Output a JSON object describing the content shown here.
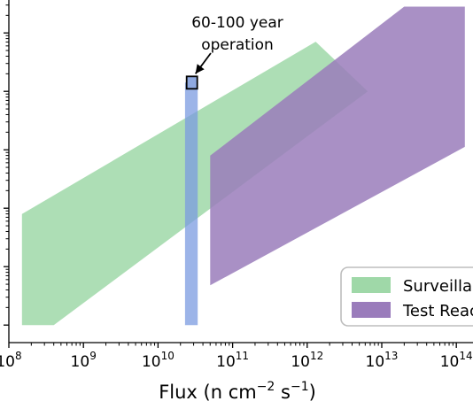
{
  "chart_data": {
    "type": "area",
    "xlabel": {
      "base": "Flux (n cm",
      "exp1": "−2",
      "mid": " s",
      "exp2": "−1",
      "end": ")"
    },
    "xscale": "log",
    "xlim": [
      100000000.0,
      120000000000000.0
    ],
    "ylim_log_decades": [
      0,
      5.8
    ],
    "yscale": "log",
    "x_ticks": [
      {
        "base": "10",
        "exp": "8",
        "value": 100000000.0
      },
      {
        "base": "10",
        "exp": "9",
        "value": 1000000000.0
      },
      {
        "base": "10",
        "exp": "10",
        "value": 10000000000.0
      },
      {
        "base": "10",
        "exp": "11",
        "value": 100000000000.0
      },
      {
        "base": "10",
        "exp": "12",
        "value": 1000000000000.0
      },
      {
        "base": "10",
        "exp": "13",
        "value": 10000000000000.0
      },
      {
        "base": "10",
        "exp": "14",
        "value": 100000000000000.0
      }
    ],
    "y_tick_decades": [
      0.3,
      1.3,
      2.3,
      3.3,
      4.3,
      5.3
    ],
    "series": [
      {
        "name": "Surveillance",
        "color": "#9fd8a8",
        "points": [
          [
            150000000.0,
            0.3
          ],
          [
            400000000.0,
            0.3
          ],
          [
            6500000000000.0,
            4.3
          ],
          [
            1300000000000.0,
            5.15
          ],
          [
            150000000.0,
            2.2
          ]
        ]
      },
      {
        "name": "Test Reactor",
        "color": "#9a7cbb",
        "points": [
          [
            50000000000.0,
            3.2
          ],
          [
            20000000000000.0,
            5.75
          ],
          [
            130000000000000.0,
            5.75
          ],
          [
            130000000000000.0,
            3.35
          ],
          [
            50000000000.0,
            0.98
          ]
        ]
      },
      {
        "name": "",
        "color": "#7b9be0",
        "points": [
          [
            23000000000.0,
            0.3
          ],
          [
            34000000000.0,
            0.3
          ],
          [
            34000000000.0,
            4.45
          ],
          [
            23000000000.0,
            4.45
          ]
        ]
      }
    ],
    "marker": {
      "x": 28500000000.0,
      "y": 4.45,
      "color": "#8fa9e0"
    },
    "annotation": {
      "line1": "60-100 year",
      "line2": "operation",
      "arrow_from": [
        40000000000.0,
        5.2
      ],
      "arrow_to": [
        28500000000.0,
        4.55
      ]
    },
    "legend": {
      "position": "lower-right",
      "entries": [
        {
          "label": "Surveillance",
          "color": "#9fd8a8"
        },
        {
          "label": "Test Reactor",
          "color": "#9a7cbb"
        }
      ]
    }
  }
}
